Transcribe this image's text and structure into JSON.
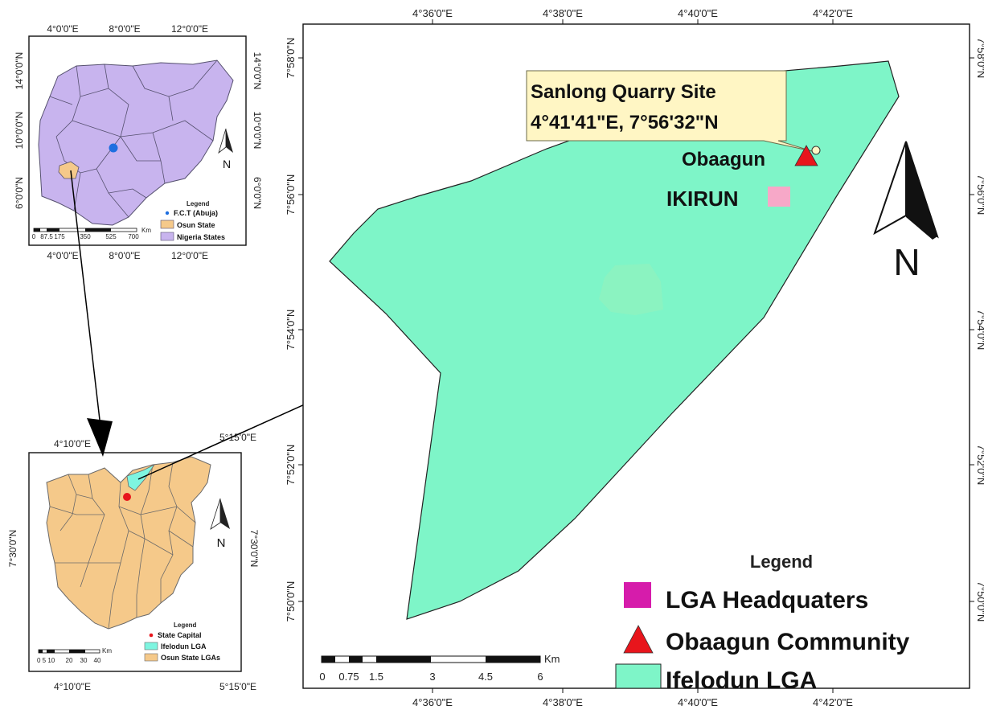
{
  "main_map": {
    "x_ticks_top": [
      "4°36'0\"E",
      "4°38'0\"E",
      "4°40'0\"E",
      "4°42'0\"E"
    ],
    "x_ticks_bottom": [
      "4°36'0\"E",
      "4°38'0\"E",
      "4°40'0\"E",
      "4°42'0\"E"
    ],
    "y_ticks_left": [
      "7°58'0\"N",
      "7°56'0\"N",
      "7°54'0\"N",
      "7°52'0\"N",
      "7°50'0\"N"
    ],
    "y_ticks_right": [
      "7°58'0\"N",
      "7°56'0\"N",
      "7°54'0\"N",
      "7°52'0\"N",
      "7°50'0\"N"
    ],
    "callout_line1": "Sanlong Quarry Site",
    "callout_line2": "4°41'41\"E, 7°56'32\"N",
    "community_label": "Obaagun",
    "headquarters_label": "IKIRUN",
    "north_label": "N",
    "scale_unit": "Km",
    "scale_labels": [
      "0",
      "0.75",
      "1.5",
      "3",
      "4.5",
      "6"
    ],
    "legend": {
      "title": "Legend",
      "items": [
        {
          "label": "LGA Headquaters",
          "color": "#d61cab"
        },
        {
          "label": "Obaagun Community",
          "color": "#e8151c"
        },
        {
          "label": "Ifelodun LGA",
          "color": "#7ef5c8"
        }
      ]
    }
  },
  "nigeria_inset": {
    "x_ticks_top": [
      "4°0'0\"E",
      "8°0'0\"E",
      "12°0'0\"E"
    ],
    "x_ticks_bottom": [
      "4°0'0\"E",
      "8°0'0\"E",
      "12°0'0\"E"
    ],
    "y_ticks_left": [
      "14°0'0\"N",
      "10°0'0\"N",
      "6°0'0\"N"
    ],
    "y_ticks_right": [
      "14°0'0\"N",
      "10°0'0\"N",
      "6°0'0\"N"
    ],
    "north_label": "N",
    "scale_unit": "Km",
    "scale_labels": [
      "0",
      "87.5",
      "175",
      "350",
      "525",
      "700"
    ],
    "legend": {
      "title": "Legend",
      "items": [
        {
          "label": "F.C.T (Abuja)",
          "color": "#1e6fe0"
        },
        {
          "label": "Osun State",
          "color": "#f5c98a"
        },
        {
          "label": "Nigeria States",
          "color": "#c8b4ee"
        }
      ]
    }
  },
  "osun_inset": {
    "x_ticks_top": [
      "4°10'0\"E",
      "5°15'0\"E"
    ],
    "x_ticks_bottom": [
      "4°10'0\"E",
      "5°15'0\"E"
    ],
    "y_ticks_left": [
      "7°30'0\"N"
    ],
    "y_ticks_right": [
      "7°30'0\"N"
    ],
    "north_label": "N",
    "scale_unit": "Km",
    "scale_labels": [
      "0 5 10",
      "20",
      "30",
      "40"
    ],
    "legend": {
      "title": "Legend",
      "items": [
        {
          "label": "State Capital",
          "color": "#e8151c"
        },
        {
          "label": "Ifelodun LGA",
          "color": "#7ef5e0"
        },
        {
          "label": "Osun State LGAs",
          "color": "#f5c98a"
        }
      ]
    }
  }
}
